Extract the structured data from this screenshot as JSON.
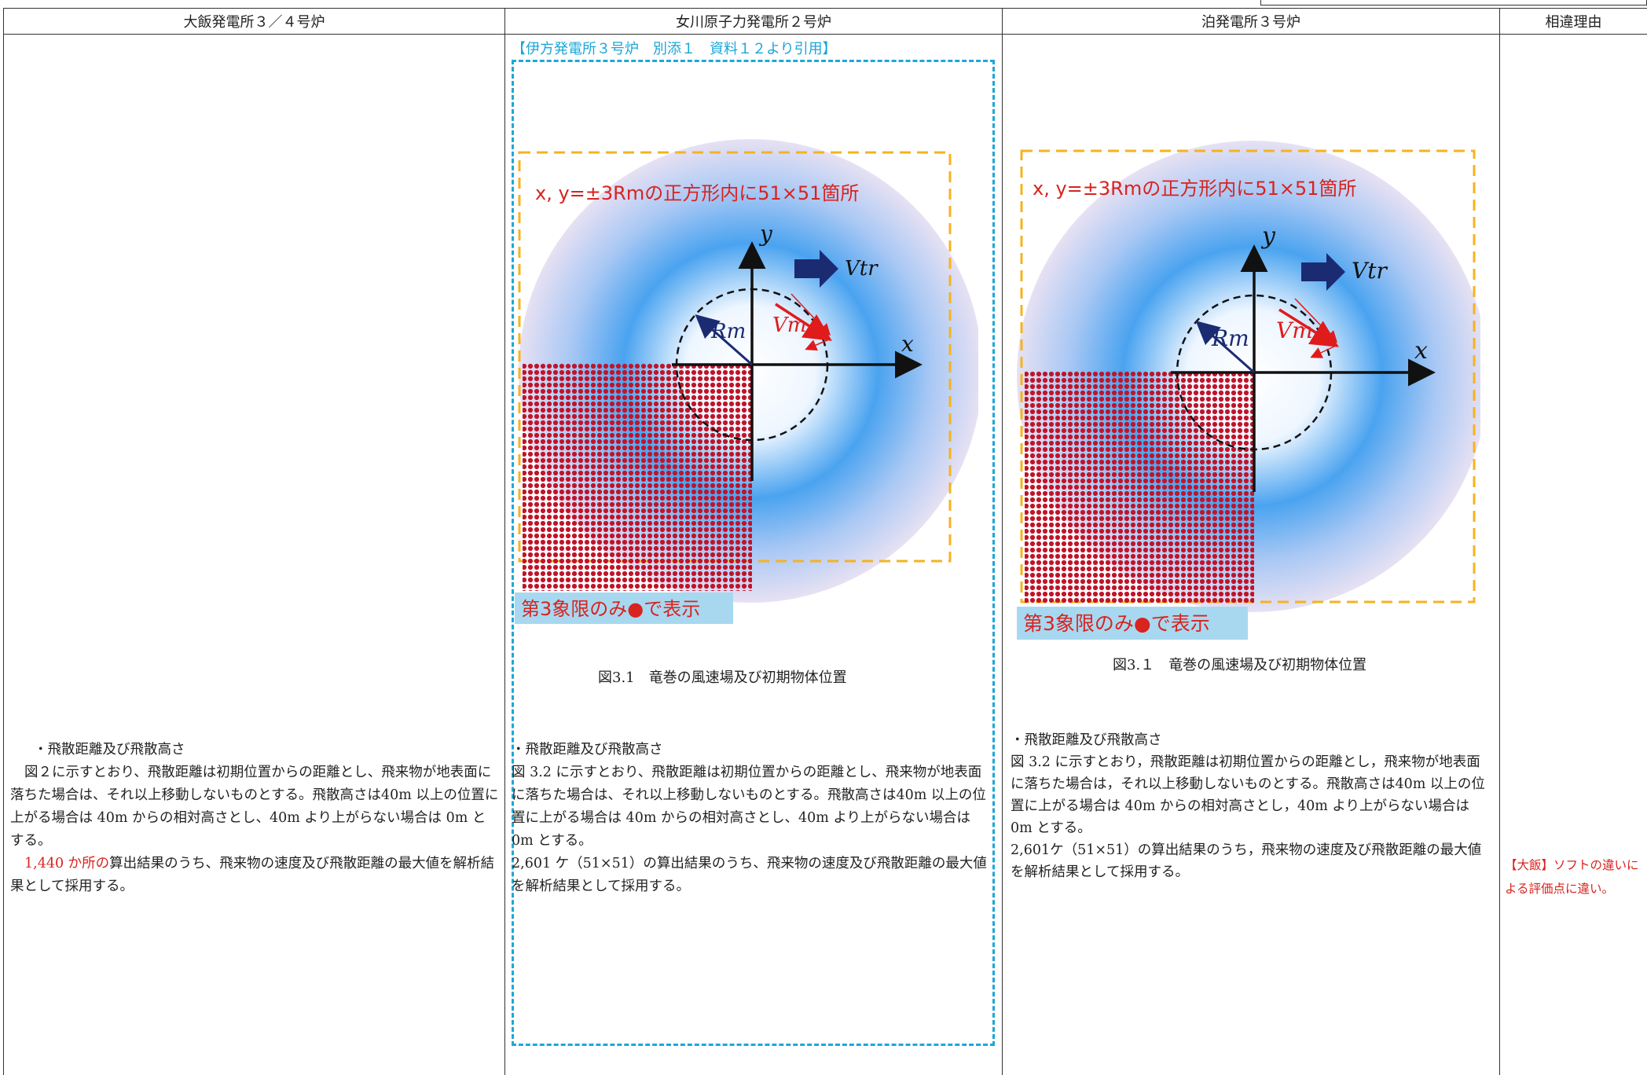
{
  "header": {
    "columns": [
      "大飯発電所３／４号炉",
      "女川原子力発電所２号炉",
      "泊発電所３号炉",
      "相違理由"
    ]
  },
  "colors": {
    "accent_red": "#d8231f",
    "cite_blue": "#1aa6d8",
    "dash_yellow": "#f4b321",
    "label_bg": "#a8d8f0"
  },
  "col1": {
    "heading": "・飛散距離及び飛散高さ",
    "para1": "図２に示すとおり、飛散距離は初期位置からの距離とし、飛来物が地表面に落ちた場合は、それ以上移動しないものとする。飛散高さは40m 以上の位置に上がる場合は 40m からの相対高さとし、40m より上がらない場合は 0m とする。",
    "para2_red": "1,440 か所の",
    "para2_rest": "算出結果のうち、飛来物の速度及び飛散距離の最大値を解析結果として採用する。"
  },
  "col2": {
    "citation": "【伊方発電所３号炉　別添１　資料１２より引用】",
    "figure_caption": "図3.1　竜巻の風速場及び初期物体位置",
    "heading": "・飛散距離及び飛散高さ",
    "para1": "図 3.2 に示すとおり、飛散距離は初期位置からの距離とし、飛来物が地表面に落ちた場合は、それ以上移動しないものとする。飛散高さは40m 以上の位置に上がる場合は 40m からの相対高さとし、40m より上がらない場合は 0m とする。",
    "para2": "2,601 ケ（51×51）の算出結果のうち、飛来物の速度及び飛散距離の最大値を解析結果として採用する。"
  },
  "col3": {
    "figure_caption": "図3.１　竜巻の風速場及び初期物体位置",
    "heading": "・飛散距離及び飛散高さ",
    "para1": "図 3.2 に示すとおり，飛散距離は初期位置からの距離とし，飛来物が地表面に落ちた場合は，それ以上移動しないものとする。飛散高さは40m 以上の位置に上がる場合は 40m からの相対高さとし，40m より上がらない場合は 0m とする。",
    "para2": "2,601ケ（51×51）の算出結果のうち，飛来物の速度及び飛散距離の最大値を解析結果として採用する。"
  },
  "figure": {
    "grid_label": "x, y=±3Rmの正方形内に51×51箇所",
    "quadrant_label": "第3象限のみ●で表示",
    "axis_x": "x",
    "axis_y": "y",
    "vtr": "Vtr",
    "rm": "Rm",
    "vm": "Vm"
  },
  "col4": {
    "reason_text": "【大飯】ソフトの違いによる評価点に違い。"
  }
}
